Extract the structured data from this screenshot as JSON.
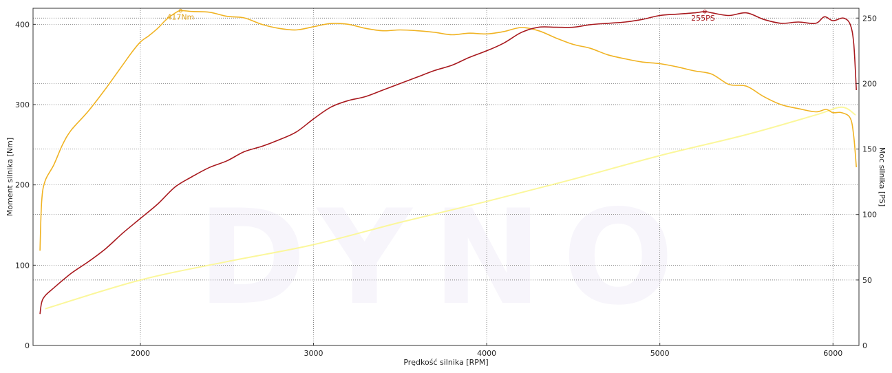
{
  "chart_data": {
    "type": "line",
    "xlabel": "Prędkość silnika [RPM]",
    "ylabel_left": "Moment silnika [Nm]",
    "ylabel_right": "Moc silnika [PS]",
    "xlim": [
      1380,
      6150
    ],
    "ylim_left": [
      0,
      420
    ],
    "ylim_right": [
      0,
      257.5
    ],
    "x_ticks": [
      "2000",
      "3000",
      "4000",
      "5000",
      "6000"
    ],
    "y_left_ticks": [
      "0",
      "100",
      "200",
      "300",
      "400"
    ],
    "y_right_ticks": [
      "0",
      "50",
      "100",
      "150",
      "200",
      "250"
    ],
    "grid": true,
    "watermark": "DYNO",
    "series": [
      {
        "axis": "left",
        "color": "#f0b323",
        "points": [
          [
            1420,
            118
          ],
          [
            1430,
            180
          ],
          [
            1450,
            205
          ],
          [
            1500,
            225
          ],
          [
            1550,
            250
          ],
          [
            1600,
            268
          ],
          [
            1700,
            292
          ],
          [
            1800,
            320
          ],
          [
            1900,
            350
          ],
          [
            1950,
            365
          ],
          [
            2000,
            378
          ],
          [
            2050,
            386
          ],
          [
            2100,
            395
          ],
          [
            2150,
            406
          ],
          [
            2200,
            414
          ],
          [
            2232,
            417
          ],
          [
            2300,
            416
          ],
          [
            2400,
            415
          ],
          [
            2500,
            410
          ],
          [
            2600,
            408
          ],
          [
            2700,
            400
          ],
          [
            2800,
            395
          ],
          [
            2900,
            393
          ],
          [
            3000,
            397
          ],
          [
            3100,
            401
          ],
          [
            3200,
            400
          ],
          [
            3300,
            395
          ],
          [
            3400,
            392
          ],
          [
            3500,
            393
          ],
          [
            3600,
            392
          ],
          [
            3700,
            390
          ],
          [
            3800,
            387
          ],
          [
            3900,
            389
          ],
          [
            4000,
            388
          ],
          [
            4100,
            391
          ],
          [
            4200,
            396
          ],
          [
            4300,
            392
          ],
          [
            4400,
            383
          ],
          [
            4500,
            375
          ],
          [
            4600,
            370
          ],
          [
            4700,
            362
          ],
          [
            4800,
            357
          ],
          [
            4900,
            353
          ],
          [
            5000,
            351
          ],
          [
            5100,
            347
          ],
          [
            5200,
            342
          ],
          [
            5300,
            338
          ],
          [
            5400,
            325
          ],
          [
            5500,
            323
          ],
          [
            5600,
            310
          ],
          [
            5700,
            300
          ],
          [
            5800,
            295
          ],
          [
            5900,
            291
          ],
          [
            5960,
            294
          ],
          [
            6000,
            290
          ],
          [
            6050,
            290
          ],
          [
            6100,
            283
          ],
          [
            6120,
            260
          ],
          [
            6135,
            222
          ]
        ]
      },
      {
        "axis": "right",
        "color": "#a8191e",
        "points": [
          [
            1420,
            24
          ],
          [
            1430,
            33
          ],
          [
            1450,
            38
          ],
          [
            1500,
            44
          ],
          [
            1600,
            55
          ],
          [
            1700,
            64
          ],
          [
            1800,
            74
          ],
          [
            1900,
            86
          ],
          [
            2000,
            97
          ],
          [
            2100,
            108
          ],
          [
            2200,
            121
          ],
          [
            2300,
            129
          ],
          [
            2400,
            136
          ],
          [
            2500,
            141
          ],
          [
            2600,
            148
          ],
          [
            2700,
            152
          ],
          [
            2800,
            157
          ],
          [
            2900,
            163
          ],
          [
            3000,
            173
          ],
          [
            3100,
            182
          ],
          [
            3200,
            187
          ],
          [
            3300,
            190
          ],
          [
            3400,
            195
          ],
          [
            3500,
            200
          ],
          [
            3600,
            205
          ],
          [
            3700,
            210
          ],
          [
            3800,
            214
          ],
          [
            3900,
            220
          ],
          [
            4000,
            225
          ],
          [
            4100,
            231
          ],
          [
            4200,
            239
          ],
          [
            4300,
            243
          ],
          [
            4400,
            243
          ],
          [
            4500,
            243
          ],
          [
            4600,
            245
          ],
          [
            4700,
            246
          ],
          [
            4800,
            247
          ],
          [
            4900,
            249
          ],
          [
            5000,
            252
          ],
          [
            5100,
            253
          ],
          [
            5200,
            254
          ],
          [
            5260,
            255
          ],
          [
            5300,
            254
          ],
          [
            5400,
            252
          ],
          [
            5500,
            254
          ],
          [
            5600,
            249
          ],
          [
            5700,
            246
          ],
          [
            5800,
            247
          ],
          [
            5900,
            246
          ],
          [
            5950,
            251
          ],
          [
            6000,
            248
          ],
          [
            6060,
            250
          ],
          [
            6100,
            245
          ],
          [
            6120,
            230
          ],
          [
            6135,
            195
          ]
        ]
      },
      {
        "axis": "right",
        "color": "#fbf79b",
        "points": [
          [
            1450,
            28
          ],
          [
            2000,
            50
          ],
          [
            2500,
            64
          ],
          [
            3000,
            77
          ],
          [
            3500,
            94
          ],
          [
            4000,
            110
          ],
          [
            4500,
            127
          ],
          [
            5000,
            145
          ],
          [
            5500,
            161
          ],
          [
            5900,
            176
          ],
          [
            6050,
            182
          ],
          [
            6130,
            176
          ]
        ]
      }
    ],
    "annotations": [
      {
        "text": "417Nm",
        "x": 2232,
        "y": 417,
        "axis": "left",
        "color": "#e0a21c"
      },
      {
        "text": "255PS",
        "x": 5260,
        "y": 255,
        "axis": "right",
        "color": "#a8191e"
      }
    ]
  }
}
